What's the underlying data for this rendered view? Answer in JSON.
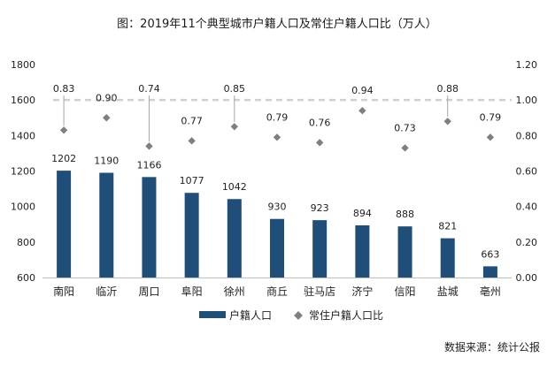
{
  "chart_data": {
    "type": "bar",
    "title": "图：2019年11个典型城市户籍人口及常住户籍人口比（万人）",
    "categories": [
      "南阳",
      "临沂",
      "周口",
      "阜阳",
      "徐州",
      "商丘",
      "驻马店",
      "济宁",
      "信阳",
      "盐城",
      "亳州"
    ],
    "series": [
      {
        "name": "户籍人口",
        "type": "bar",
        "axis": "left",
        "values": [
          1202,
          1190,
          1166,
          1077,
          1042,
          930,
          923,
          894,
          888,
          821,
          663
        ],
        "labels": [
          "1202",
          "1190",
          "1166",
          "1077",
          "1042",
          "930",
          "923",
          "894",
          "888",
          "821",
          "663"
        ],
        "color": "#1f4e79"
      },
      {
        "name": "常住户籍人口比",
        "type": "scatter",
        "axis": "right",
        "values": [
          0.83,
          0.9,
          0.74,
          0.77,
          0.85,
          0.79,
          0.76,
          0.94,
          0.73,
          0.88,
          0.79
        ],
        "labels": [
          "0.83",
          "0.90",
          "0.74",
          "0.77",
          "0.85",
          "0.79",
          "0.76",
          "0.94",
          "0.73",
          "0.88",
          "0.79"
        ],
        "color": "#7f7f7f"
      }
    ],
    "y_left": {
      "min": 600,
      "max": 1800,
      "ticks": [
        "600",
        "800",
        "1000",
        "1200",
        "1400",
        "1600",
        "1800"
      ]
    },
    "y_right": {
      "min": 0,
      "max": 1.2,
      "ticks": [
        "0.00",
        "0.20",
        "0.40",
        "0.60",
        "0.80",
        "1.00",
        "1.20"
      ]
    },
    "reference_line": {
      "axis": "right",
      "value": 1.0,
      "style": "dashed",
      "color": "#d0d0d0"
    },
    "legend": {
      "position": "bottom",
      "entries": [
        "户籍人口",
        "常住户籍人口比"
      ]
    },
    "grid": false
  },
  "source": "数据来源：统计公报"
}
